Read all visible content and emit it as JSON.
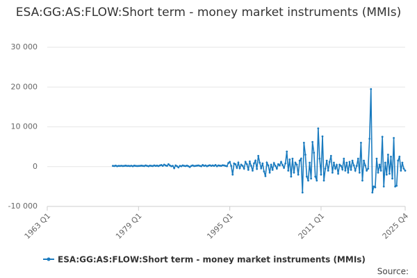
{
  "chart_data": {
    "type": "line",
    "title": "ESA:GG:AS:FLOW:Short term - money market instruments (MMIs)",
    "source": "Source:",
    "categories": [
      "1963 Q1",
      null,
      null,
      null,
      null,
      null,
      null,
      null,
      null,
      null,
      null,
      null,
      null,
      null,
      null,
      null,
      null,
      null,
      null,
      null,
      null,
      null,
      null,
      null,
      null,
      null,
      null,
      null,
      null,
      null,
      null,
      null,
      null,
      null,
      null,
      null,
      null,
      null,
      null,
      null,
      null,
      null,
      null,
      null,
      null,
      null,
      null,
      null,
      null,
      null,
      null,
      null,
      null,
      null,
      null,
      null,
      null,
      null,
      null,
      null,
      null,
      null,
      null,
      null,
      "1979 Q1",
      null,
      null,
      null,
      null,
      null,
      null,
      null,
      null,
      null,
      null,
      null,
      null,
      null,
      null,
      null,
      null,
      null,
      null,
      null,
      null,
      null,
      null,
      null,
      null,
      null,
      null,
      null,
      null,
      null,
      null,
      null,
      null,
      null,
      null,
      null,
      null,
      null,
      null,
      null,
      null,
      null,
      null,
      null,
      null,
      null,
      null,
      null,
      null,
      null,
      null,
      null,
      null,
      null,
      null,
      null,
      null,
      null,
      null,
      null,
      null,
      null,
      null,
      null,
      "1995 Q1",
      null,
      null,
      null,
      null,
      null,
      null,
      null,
      null,
      null,
      null,
      null,
      null,
      null,
      null,
      null,
      null,
      null,
      null,
      null,
      null,
      null,
      null,
      null,
      null,
      null,
      null,
      null,
      null,
      null,
      null,
      null,
      null,
      null,
      null,
      null,
      null,
      null,
      null,
      null,
      null,
      null,
      null,
      null,
      null,
      null,
      null,
      null,
      null,
      null,
      null,
      null,
      null,
      null,
      null,
      null,
      null,
      null,
      null,
      null,
      null,
      null,
      null,
      null,
      "2011 Q1",
      null,
      null,
      null,
      null,
      null,
      null,
      null,
      null,
      null,
      null,
      null,
      null,
      null,
      null,
      null,
      null,
      null,
      null,
      null,
      null,
      null,
      null,
      null,
      null,
      null,
      null,
      null,
      null,
      null,
      null,
      null,
      null,
      null,
      null,
      null,
      null,
      null,
      null,
      null,
      null,
      null,
      null,
      null,
      null,
      null,
      null,
      null,
      null,
      null,
      null,
      null,
      null,
      null,
      null,
      null,
      null,
      null,
      null,
      "2025 Q4"
    ],
    "series": [
      {
        "name": "ESA:GG:AS:FLOW:Short term - money market instruments (MMIs)",
        "color": "#1a7bbf",
        "values": [
          null,
          null,
          null,
          null,
          null,
          null,
          null,
          null,
          null,
          null,
          null,
          null,
          null,
          null,
          null,
          null,
          null,
          null,
          null,
          null,
          null,
          null,
          null,
          null,
          null,
          null,
          null,
          null,
          null,
          null,
          null,
          null,
          null,
          null,
          null,
          null,
          null,
          null,
          null,
          null,
          null,
          null,
          null,
          null,
          null,
          null,
          200,
          150,
          250,
          100,
          200,
          180,
          220,
          150,
          200,
          250,
          180,
          200,
          150,
          220,
          100,
          250,
          200,
          150,
          180,
          200,
          250,
          200,
          150,
          300,
          200,
          100,
          250,
          200,
          150,
          300,
          200,
          250,
          150,
          300,
          400,
          200,
          500,
          300,
          200,
          600,
          300,
          100,
          200,
          -400,
          300,
          100,
          -200,
          200,
          100,
          300,
          200,
          150,
          250,
          100,
          -100,
          200,
          300,
          150,
          200,
          250,
          300,
          200,
          100,
          400,
          200,
          300,
          100,
          250,
          350,
          200,
          300,
          200,
          400,
          100,
          300,
          250,
          200,
          350,
          300,
          200,
          100,
          900,
          1200,
          200,
          -2000,
          800,
          600,
          -300,
          1000,
          -400,
          500,
          200,
          -500,
          1200,
          600,
          -800,
          1300,
          200,
          -1000,
          800,
          1500,
          -600,
          2700,
          1000,
          -400,
          800,
          -1200,
          -2400,
          1000,
          300,
          -1500,
          500,
          -800,
          900,
          200,
          -500,
          600,
          300,
          1200,
          400,
          -300,
          800,
          3800,
          -1000,
          1800,
          -2500,
          2000,
          -1500,
          1000,
          500,
          -2000,
          1500,
          2000,
          -6500,
          6000,
          3000,
          -2500,
          -3500,
          1000,
          -3000,
          6200,
          3500,
          -2500,
          -3500,
          9600,
          2000,
          -2000,
          7600,
          -3500,
          -500,
          1500,
          -1000,
          1200,
          2700,
          -1500,
          1000,
          -500,
          400,
          -1800,
          500,
          200,
          -700,
          2000,
          -1000,
          1000,
          -1500,
          1200,
          -800,
          1500,
          300,
          -1000,
          200,
          2000,
          -1500,
          6000,
          -3500,
          1500,
          300,
          -1000,
          -500,
          7000,
          19500,
          -6500,
          -5000,
          -5200,
          2000,
          -1500,
          500,
          -1000,
          7500,
          -5000,
          1000,
          -2000,
          3000,
          -1800,
          2500,
          -3000,
          7200,
          -5000,
          -4800,
          1500,
          2500,
          -1000,
          1000,
          -500,
          -1000
        ]
      }
    ],
    "ylim": [
      -10000,
      30000
    ],
    "yticks": [
      {
        "value": -10000,
        "label": "-10 000"
      },
      0,
      {
        "value": 10000,
        "label": "10 000"
      },
      {
        "value": 20000,
        "label": "20 000"
      },
      {
        "value": 30000,
        "label": "30 000"
      }
    ],
    "grid": true
  }
}
